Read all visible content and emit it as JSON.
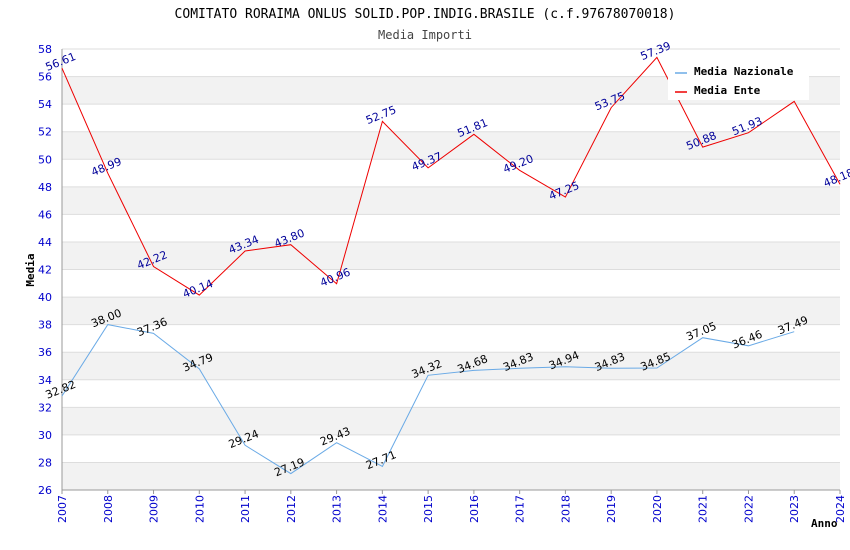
{
  "chart_data": {
    "type": "line",
    "title": "COMITATO RORAIMA ONLUS SOLID.POP.INDIG.BRASILE (c.f.97678070018)",
    "subtitle": "Media Importi",
    "xlabel": "Anno",
    "ylabel": "Media",
    "ylim": [
      26,
      58
    ],
    "yticks": [
      26,
      28,
      30,
      32,
      34,
      36,
      38,
      40,
      42,
      44,
      46,
      48,
      50,
      52,
      54,
      56,
      58
    ],
    "x": [
      "2007",
      "2008",
      "2009",
      "2010",
      "2011",
      "2012",
      "2013",
      "2014",
      "2015",
      "2016",
      "2017",
      "2018",
      "2019",
      "2020",
      "2021",
      "2022",
      "2023",
      "2024"
    ],
    "grid": true,
    "legend_position": "top-right",
    "series": [
      {
        "name": "Media Nazionale",
        "color": "#6aaae6",
        "label_color": "#000000",
        "values": [
          32.82,
          38.0,
          37.36,
          34.79,
          29.24,
          27.19,
          29.43,
          27.71,
          34.32,
          34.68,
          34.83,
          34.94,
          34.83,
          34.85,
          37.05,
          36.46,
          37.49,
          null
        ],
        "labels": [
          "32.82",
          "38.00",
          "37.36",
          "34.79",
          "29.24",
          "27.19",
          "29.43",
          "27.71",
          "34.32",
          "34.68",
          "34.83",
          "34.94",
          "34.83",
          "34.85",
          "37.05",
          "36.46",
          "37.49",
          ""
        ]
      },
      {
        "name": "Media Ente",
        "color": "#ee0000",
        "label_color": "#000099",
        "values": [
          56.61,
          48.99,
          42.22,
          40.14,
          43.34,
          43.8,
          40.96,
          52.75,
          49.37,
          51.81,
          49.2,
          47.25,
          53.75,
          57.39,
          50.88,
          51.93,
          54.2,
          48.18
        ],
        "labels": [
          "56.61",
          "48.99",
          "42.22",
          "40.14",
          "43.34",
          "43.80",
          "40.96",
          "52.75",
          "49.37",
          "51.81",
          "49.20",
          "47.25",
          "53.75",
          "57.39",
          "50.88",
          "51.93",
          "",
          "48.18"
        ]
      }
    ]
  }
}
